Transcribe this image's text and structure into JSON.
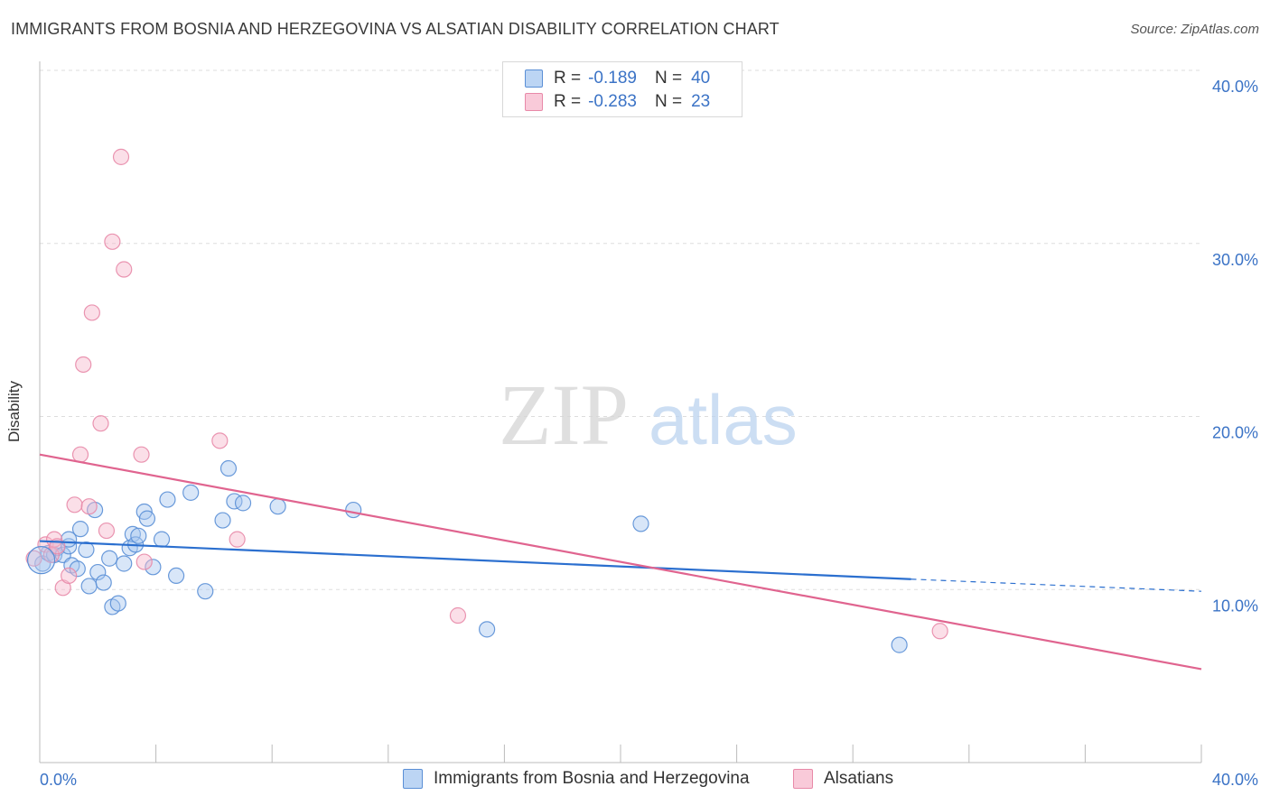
{
  "title": "IMMIGRANTS FROM BOSNIA AND HERZEGOVINA VS ALSATIAN DISABILITY CORRELATION CHART",
  "source": "Source: ZipAtlas.com",
  "watermark": {
    "zip": "ZIP",
    "atlas": "atlas"
  },
  "legend": {
    "rows": [
      {
        "r_label": "R =",
        "r_value": "-0.189",
        "n_label": "N =",
        "n_value": "40"
      },
      {
        "r_label": "R =",
        "r_value": "-0.283",
        "n_label": "N =",
        "n_value": "23"
      }
    ]
  },
  "colors": {
    "blue_fill": "#a9c8f0",
    "blue_stroke": "#5a8fd6",
    "blue_line": "#2b6fcf",
    "pink_fill": "#f6b9cc",
    "pink_stroke": "#e889a8",
    "pink_line": "#e0648f",
    "grid": "#dddddd",
    "tick_label": "#3b73c6"
  },
  "chart_data": {
    "type": "scatter",
    "title": "IMMIGRANTS FROM BOSNIA AND HERZEGOVINA VS ALSATIAN DISABILITY CORRELATION CHART",
    "xlabel": "",
    "ylabel": "Disability",
    "xlim": [
      0,
      40
    ],
    "ylim": [
      0,
      40
    ],
    "x_tick_labels": [
      "0.0%",
      "40.0%"
    ],
    "y_ticks": [
      10,
      20,
      30,
      40
    ],
    "y_tick_labels": [
      "10.0%",
      "20.0%",
      "30.0%",
      "40.0%"
    ],
    "grid": true,
    "legend_position": "bottom",
    "series": [
      {
        "name": "Immigrants from Bosnia and Herzegovina",
        "color": "blue",
        "r": -0.189,
        "n": 40,
        "trend": {
          "x0": 0,
          "y0": 12.8,
          "x1": 30,
          "y1": 10.6,
          "dashed_to_x": 40,
          "dashed_to_y": 9.9
        },
        "points": [
          [
            0.1,
            11.5
          ],
          [
            0.3,
            12.1
          ],
          [
            0.5,
            12.0
          ],
          [
            0.6,
            12.4
          ],
          [
            0.8,
            12.0
          ],
          [
            1.0,
            12.5
          ],
          [
            1.0,
            12.9
          ],
          [
            1.1,
            11.4
          ],
          [
            1.3,
            11.2
          ],
          [
            1.4,
            13.5
          ],
          [
            1.6,
            12.3
          ],
          [
            1.7,
            10.2
          ],
          [
            1.9,
            14.6
          ],
          [
            2.0,
            11.0
          ],
          [
            2.2,
            10.4
          ],
          [
            2.4,
            11.8
          ],
          [
            2.5,
            9.0
          ],
          [
            2.7,
            9.2
          ],
          [
            2.9,
            11.5
          ],
          [
            3.1,
            12.4
          ],
          [
            3.2,
            13.2
          ],
          [
            3.3,
            12.6
          ],
          [
            3.4,
            13.1
          ],
          [
            3.6,
            14.5
          ],
          [
            3.7,
            14.1
          ],
          [
            3.9,
            11.3
          ],
          [
            4.2,
            12.9
          ],
          [
            4.4,
            15.2
          ],
          [
            4.7,
            10.8
          ],
          [
            5.2,
            15.6
          ],
          [
            5.7,
            9.9
          ],
          [
            6.3,
            14.0
          ],
          [
            6.5,
            17.0
          ],
          [
            6.7,
            15.1
          ],
          [
            7.0,
            15.0
          ],
          [
            8.2,
            14.8
          ],
          [
            10.8,
            14.6
          ],
          [
            15.4,
            7.7
          ],
          [
            20.7,
            13.8
          ],
          [
            29.6,
            6.8
          ]
        ]
      },
      {
        "name": "Alsatians",
        "color": "pink",
        "r": -0.283,
        "n": 23,
        "trend": {
          "x0": 0,
          "y0": 17.8,
          "x1": 40,
          "y1": 5.4
        },
        "points": [
          [
            0.2,
            12.6
          ],
          [
            0.4,
            12.0
          ],
          [
            0.5,
            12.9
          ],
          [
            0.6,
            12.5
          ],
          [
            0.8,
            10.1
          ],
          [
            1.0,
            10.8
          ],
          [
            1.2,
            14.9
          ],
          [
            1.4,
            17.8
          ],
          [
            1.5,
            23.0
          ],
          [
            1.7,
            14.8
          ],
          [
            1.8,
            26.0
          ],
          [
            2.1,
            19.6
          ],
          [
            2.3,
            13.4
          ],
          [
            2.5,
            30.1
          ],
          [
            2.8,
            35.0
          ],
          [
            2.9,
            28.5
          ],
          [
            3.5,
            17.8
          ],
          [
            3.6,
            11.6
          ],
          [
            6.2,
            18.6
          ],
          [
            6.8,
            12.9
          ],
          [
            14.4,
            8.5
          ],
          [
            31.0,
            7.6
          ],
          [
            -0.2,
            11.8
          ]
        ]
      }
    ]
  }
}
